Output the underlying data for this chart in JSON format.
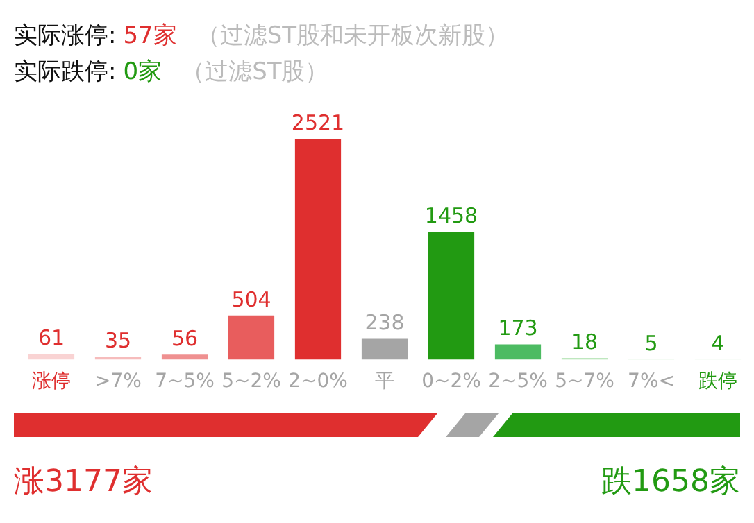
{
  "chart_data": {
    "type": "bar",
    "categories": [
      "涨停",
      ">7%",
      "7~5%",
      "5~2%",
      "2~0%",
      "平",
      "0~2%",
      "2~5%",
      "5~7%",
      "7%<",
      "跌停"
    ],
    "values": [
      61,
      35,
      56,
      504,
      2521,
      238,
      1458,
      173,
      18,
      5,
      4
    ],
    "colors": [
      "#f9d3d3",
      "#f6bcbc",
      "#ef9090",
      "#e85d5d",
      "#df2f2f",
      "#a5a5a5",
      "#229a12",
      "#4cbb62",
      "#a8dfa9",
      "#d2efd2",
      "#e3f4e3"
    ],
    "data_labels": true,
    "grid": false,
    "legend": false,
    "tick_labels": "x",
    "annotations": [
      "实际涨停:",
      "57家",
      "（过滤ST股和未开板次新股）",
      "实际跌停:",
      "0家",
      "（过滤ST股）",
      "涨3177家",
      "跌1658家"
    ]
  }
}
